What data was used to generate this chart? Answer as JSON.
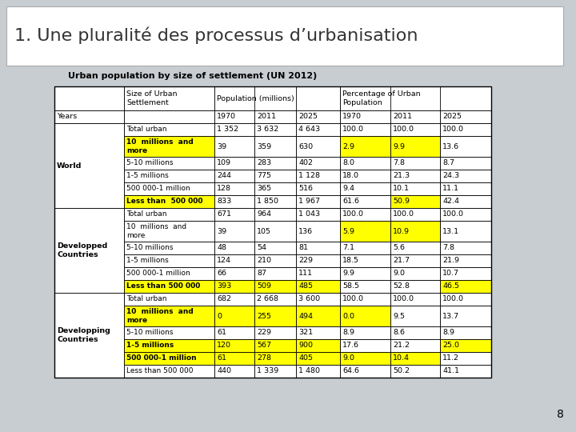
{
  "title": "1. Une pluralité des processus d’urbanisation",
  "subtitle": "Urban population by size of settlement (UN 2012)",
  "background_color": "#c8cdd2",
  "title_bg_color": "#ffffff",
  "yellow": "#ffff00",
  "white": "#ffffff",
  "rows": [
    {
      "label": "World",
      "subrows": [
        {
          "cell": "Total urban",
          "p1970": "1 352",
          "p2011": "3 632",
          "p2025": "4 643",
          "pct1970": "100.0",
          "pct2011": "100.0",
          "pct2025": "100.0",
          "hi_cell": false,
          "hi_pop": [
            false,
            false,
            false
          ],
          "hi_pct": [
            false,
            false,
            false
          ]
        },
        {
          "cell": "10  millions  and\nmore",
          "p1970": "39",
          "p2011": "359",
          "p2025": "630",
          "pct1970": "2.9",
          "pct2011": "9.9",
          "pct2025": "13.6",
          "hi_cell": true,
          "hi_pop": [
            false,
            false,
            false
          ],
          "hi_pct": [
            true,
            true,
            false
          ]
        },
        {
          "cell": "5-10 millions",
          "p1970": "109",
          "p2011": "283",
          "p2025": "402",
          "pct1970": "8.0",
          "pct2011": "7.8",
          "pct2025": "8.7",
          "hi_cell": false,
          "hi_pop": [
            false,
            false,
            false
          ],
          "hi_pct": [
            false,
            false,
            false
          ]
        },
        {
          "cell": "1-5 millions",
          "p1970": "244",
          "p2011": "775",
          "p2025": "1 128",
          "pct1970": "18.0",
          "pct2011": "21.3",
          "pct2025": "24.3",
          "hi_cell": false,
          "hi_pop": [
            false,
            false,
            false
          ],
          "hi_pct": [
            false,
            false,
            false
          ]
        },
        {
          "cell": "500 000-1 million",
          "p1970": "128",
          "p2011": "365",
          "p2025": "516",
          "pct1970": "9.4",
          "pct2011": "10.1",
          "pct2025": "11.1",
          "hi_cell": false,
          "hi_pop": [
            false,
            false,
            false
          ],
          "hi_pct": [
            false,
            false,
            false
          ]
        },
        {
          "cell": "Less than  500 000",
          "p1970": "833",
          "p2011": "1 850",
          "p2025": "1 967",
          "pct1970": "61.6",
          "pct2011": "50.9",
          "pct2025": "42.4",
          "hi_cell": true,
          "hi_pop": [
            false,
            false,
            false
          ],
          "hi_pct": [
            false,
            true,
            false
          ]
        }
      ]
    },
    {
      "label": "Developped\nCountries",
      "subrows": [
        {
          "cell": "Total urban",
          "p1970": "671",
          "p2011": "964",
          "p2025": "1 043",
          "pct1970": "100.0",
          "pct2011": "100.0",
          "pct2025": "100.0",
          "hi_cell": false,
          "hi_pop": [
            false,
            false,
            false
          ],
          "hi_pct": [
            false,
            false,
            false
          ]
        },
        {
          "cell": "10  millions  and\nmore",
          "p1970": "39",
          "p2011": "105",
          "p2025": "136",
          "pct1970": "5.9",
          "pct2011": "10.9",
          "pct2025": "13.1",
          "hi_cell": false,
          "hi_pop": [
            false,
            false,
            false
          ],
          "hi_pct": [
            true,
            true,
            false
          ]
        },
        {
          "cell": "5-10 millions",
          "p1970": "48",
          "p2011": "54",
          "p2025": "81",
          "pct1970": "7.1",
          "pct2011": "5.6",
          "pct2025": "7.8",
          "hi_cell": false,
          "hi_pop": [
            false,
            false,
            false
          ],
          "hi_pct": [
            false,
            false,
            false
          ]
        },
        {
          "cell": "1-5 millions",
          "p1970": "124",
          "p2011": "210",
          "p2025": "229",
          "pct1970": "18.5",
          "pct2011": "21.7",
          "pct2025": "21.9",
          "hi_cell": false,
          "hi_pop": [
            false,
            false,
            false
          ],
          "hi_pct": [
            false,
            false,
            false
          ]
        },
        {
          "cell": "500 000-1 million",
          "p1970": "66",
          "p2011": "87",
          "p2025": "111",
          "pct1970": "9.9",
          "pct2011": "9.0",
          "pct2025": "10.7",
          "hi_cell": false,
          "hi_pop": [
            false,
            false,
            false
          ],
          "hi_pct": [
            false,
            false,
            false
          ]
        },
        {
          "cell": "Less than 500 000",
          "p1970": "393",
          "p2011": "509",
          "p2025": "485",
          "pct1970": "58.5",
          "pct2011": "52.8",
          "pct2025": "46.5",
          "hi_cell": true,
          "hi_pop": [
            true,
            true,
            true
          ],
          "hi_pct": [
            false,
            false,
            true
          ]
        }
      ]
    },
    {
      "label": "Developping\nCountries",
      "subrows": [
        {
          "cell": "Total urban",
          "p1970": "682",
          "p2011": "2 668",
          "p2025": "3 600",
          "pct1970": "100.0",
          "pct2011": "100.0",
          "pct2025": "100.0",
          "hi_cell": false,
          "hi_pop": [
            false,
            false,
            false
          ],
          "hi_pct": [
            false,
            false,
            false
          ]
        },
        {
          "cell": "10  millions  and\nmore",
          "p1970": "0",
          "p2011": "255",
          "p2025": "494",
          "pct1970": "0.0",
          "pct2011": "9.5",
          "pct2025": "13.7",
          "hi_cell": true,
          "hi_pop": [
            true,
            true,
            true
          ],
          "hi_pct": [
            true,
            false,
            false
          ]
        },
        {
          "cell": "5-10 millions",
          "p1970": "61",
          "p2011": "229",
          "p2025": "321",
          "pct1970": "8.9",
          "pct2011": "8.6",
          "pct2025": "8.9",
          "hi_cell": false,
          "hi_pop": [
            false,
            false,
            false
          ],
          "hi_pct": [
            false,
            false,
            false
          ]
        },
        {
          "cell": "1-5 millions",
          "p1970": "120",
          "p2011": "567",
          "p2025": "900",
          "pct1970": "17.6",
          "pct2011": "21.2",
          "pct2025": "25.0",
          "hi_cell": true,
          "hi_pop": [
            true,
            true,
            true
          ],
          "hi_pct": [
            false,
            false,
            true
          ]
        },
        {
          "cell": "500 000-1 million",
          "p1970": "61",
          "p2011": "278",
          "p2025": "405",
          "pct1970": "9.0",
          "pct2011": "10.4",
          "pct2025": "11.2",
          "hi_cell": true,
          "hi_pop": [
            true,
            true,
            true
          ],
          "hi_pct": [
            true,
            true,
            false
          ]
        },
        {
          "cell": "Less than 500 000",
          "p1970": "440",
          "p2011": "1 339",
          "p2025": "1 480",
          "pct1970": "64.6",
          "pct2011": "50.2",
          "pct2025": "41.1",
          "hi_cell": false,
          "hi_pop": [
            false,
            false,
            false
          ],
          "hi_pct": [
            false,
            false,
            false
          ]
        }
      ]
    }
  ],
  "page_num": "8"
}
